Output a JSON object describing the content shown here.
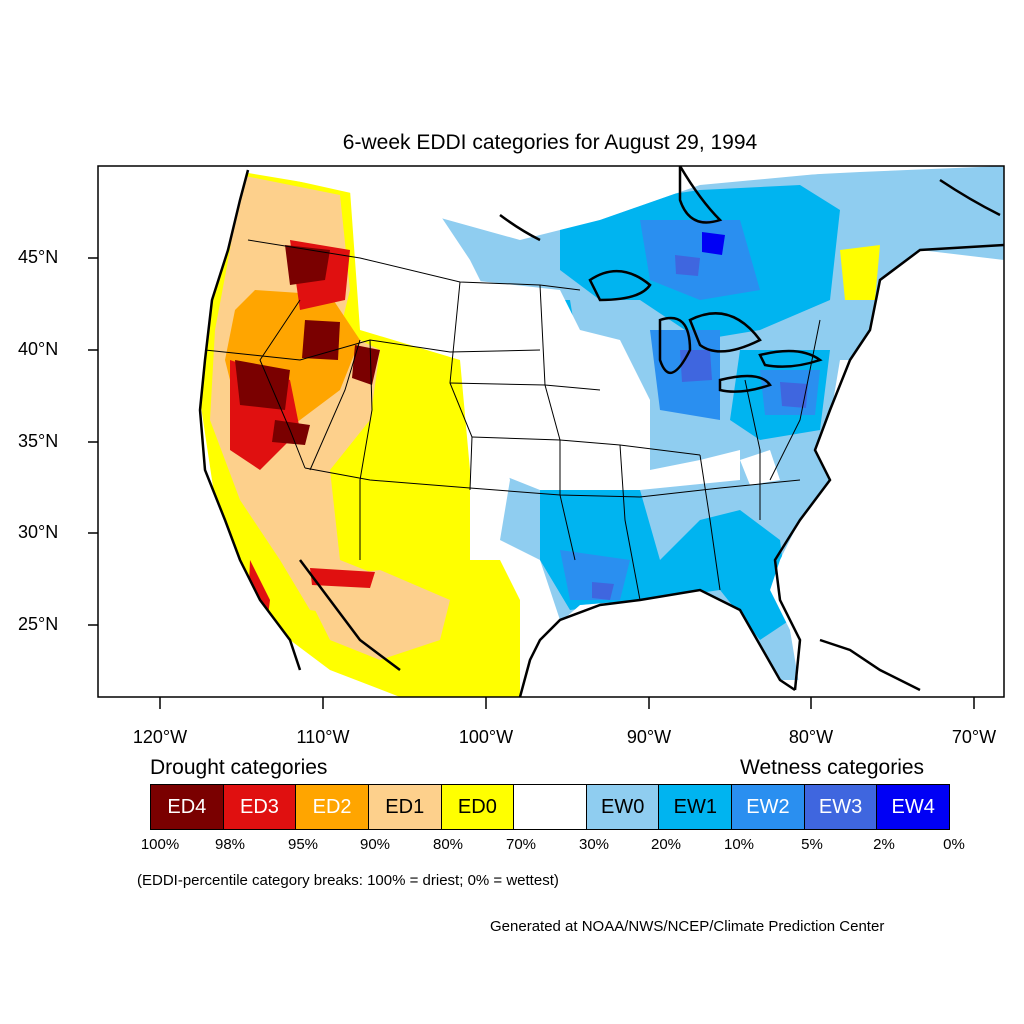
{
  "title": "6-week EDDI categories for August 29, 1994",
  "axes": {
    "lat_labels": [
      "45°N",
      "40°N",
      "35°N",
      "30°N",
      "25°N"
    ],
    "lon_labels": [
      "120°W",
      "110°W",
      "100°W",
      "90°W",
      "80°W",
      "70°W"
    ]
  },
  "legend": {
    "drought_heading": "Drought categories",
    "wetness_heading": "Wetness categories",
    "categories": [
      {
        "label": "ED4",
        "color": "#7a0000",
        "text_color": "#ffffff"
      },
      {
        "label": "ED3",
        "color": "#e01010",
        "text_color": "#ffffff"
      },
      {
        "label": "ED2",
        "color": "#ffa500",
        "text_color": "#ffffff"
      },
      {
        "label": "ED1",
        "color": "#fdd08c",
        "text_color": "#000000"
      },
      {
        "label": "ED0",
        "color": "#ffff00",
        "text_color": "#000000"
      },
      {
        "label": "",
        "color": "#ffffff",
        "text_color": "#000000"
      },
      {
        "label": "EW0",
        "color": "#8fcdf0",
        "text_color": "#000000"
      },
      {
        "label": "EW1",
        "color": "#00b4f0",
        "text_color": "#000000"
      },
      {
        "label": "EW2",
        "color": "#2a8ff0",
        "text_color": "#ffffff"
      },
      {
        "label": "EW3",
        "color": "#3f66df",
        "text_color": "#ffffff"
      },
      {
        "label": "EW4",
        "color": "#0000f5",
        "text_color": "#ffffff"
      }
    ],
    "breaks": [
      "100%",
      "98%",
      "95%",
      "90%",
      "80%",
      "70%",
      "30%",
      "20%",
      "10%",
      "5%",
      "2%",
      "0%"
    ]
  },
  "note": "(EDDI-percentile category breaks: 100% = driest; 0% = wettest)",
  "credit": "Generated at NOAA/NWS/NCEP/Climate Prediction Center"
}
